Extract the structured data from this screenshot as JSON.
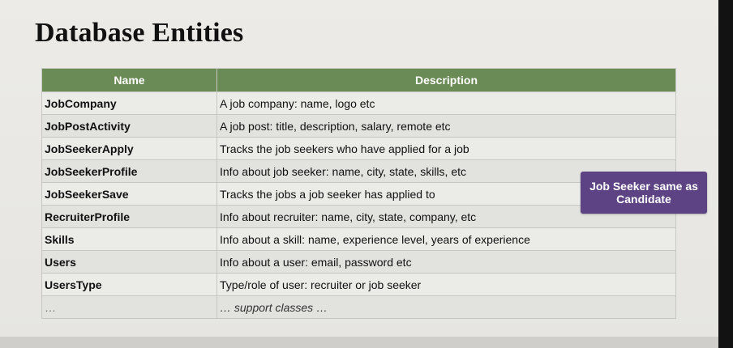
{
  "title": "Database Entities",
  "table": {
    "headers": {
      "name": "Name",
      "description": "Description"
    },
    "rows": [
      {
        "name": "JobCompany",
        "description": "A job company: name, logo etc"
      },
      {
        "name": "JobPostActivity",
        "description": "A job post: title, description, salary, remote etc"
      },
      {
        "name": "JobSeekerApply",
        "description": "Tracks the job seekers who have applied for a job"
      },
      {
        "name": "JobSeekerProfile",
        "description": "Info about job seeker: name, city, state, skills, etc"
      },
      {
        "name": "JobSeekerSave",
        "description": "Tracks the jobs a job seeker has applied to"
      },
      {
        "name": "RecruiterProfile",
        "description": "Info about recruiter: name, city, state, company, etc"
      },
      {
        "name": "Skills",
        "description": "Info about a skill: name, experience level, years of experience"
      },
      {
        "name": "Users",
        "description": "Info about a user: email, password etc"
      },
      {
        "name": "UsersType",
        "description": "Type/role of user: recruiter or job seeker"
      },
      {
        "name": "…",
        "description": "… support classes …"
      }
    ]
  },
  "callout": {
    "text": "Job Seeker same as Candidate"
  },
  "colors": {
    "header_green": "#6a8b55",
    "callout_purple": "#5d4384"
  }
}
